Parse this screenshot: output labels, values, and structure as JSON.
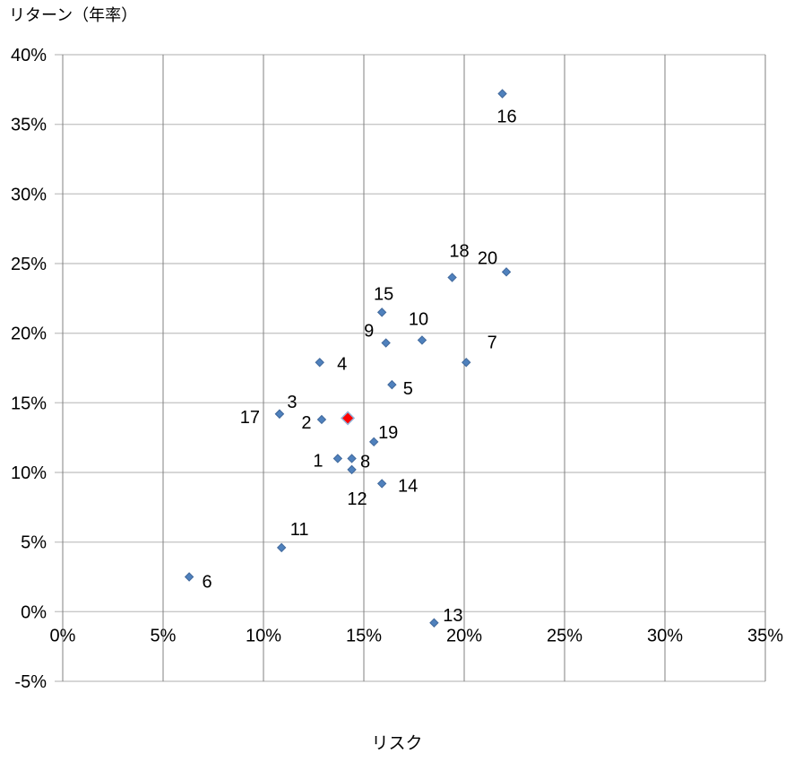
{
  "page": {
    "background": "#ffffff"
  },
  "chart_data": {
    "type": "scatter",
    "title": "",
    "xlabel": "リスク",
    "ylabel": "リターン（年率）",
    "xlim": [
      0,
      35
    ],
    "ylim": [
      -5,
      40
    ],
    "x_ticks": [
      0,
      5,
      10,
      15,
      20,
      25,
      30,
      35
    ],
    "y_ticks": [
      40,
      35,
      30,
      25,
      20,
      15,
      10,
      5,
      0,
      -5
    ],
    "tick_suffix": "%",
    "grid": "both",
    "legend": "none",
    "colors": {
      "point_fill": "#4f81bd",
      "point_stroke": "#41699c",
      "highlight_fill": "#fe0000",
      "highlight_stroke": "#95b3d7",
      "gridline_horizontal": "#c8c8c8",
      "gridline_vertical": "#818181",
      "text": "#000000"
    },
    "series": [
      {
        "name": "numbered-points",
        "marker": "diamond",
        "color": "#4f81bd",
        "stroke": "#41699c",
        "size": 9,
        "points": [
          {
            "label": "1",
            "x": 13.7,
            "y": 11.0,
            "label_offset": [
              -22,
              2
            ]
          },
          {
            "label": "2",
            "x": 12.9,
            "y": 13.8,
            "label_offset": [
              -17,
              3
            ]
          },
          {
            "label": "3",
            "x": 10.8,
            "y": 14.2,
            "label_offset": [
              14,
              -14
            ]
          },
          {
            "label": "4",
            "x": 12.8,
            "y": 17.9,
            "label_offset": [
              25,
              1
            ]
          },
          {
            "label": "5",
            "x": 16.4,
            "y": 16.3,
            "label_offset": [
              18,
              4
            ]
          },
          {
            "label": "6",
            "x": 6.3,
            "y": 2.5,
            "label_offset": [
              20,
              5
            ]
          },
          {
            "label": "7",
            "x": 20.1,
            "y": 17.9,
            "label_offset": [
              29,
              -23
            ]
          },
          {
            "label": "8",
            "x": 14.4,
            "y": 11.0,
            "label_offset": [
              15,
              3
            ]
          },
          {
            "label": "9",
            "x": 16.1,
            "y": 19.3,
            "label_offset": [
              -19,
              -14
            ]
          },
          {
            "label": "10",
            "x": 17.9,
            "y": 19.5,
            "label_offset": [
              -4,
              -24
            ]
          },
          {
            "label": "11",
            "x": 10.9,
            "y": 4.6,
            "label_offset": [
              20,
              -21
            ]
          },
          {
            "label": "12",
            "x": 14.4,
            "y": 10.2,
            "label_offset": [
              6,
              32
            ]
          },
          {
            "label": "13",
            "x": 18.5,
            "y": -0.8,
            "label_offset": [
              21,
              -9
            ]
          },
          {
            "label": "14",
            "x": 15.9,
            "y": 9.2,
            "label_offset": [
              29,
              2
            ]
          },
          {
            "label": "15",
            "x": 15.9,
            "y": 21.5,
            "label_offset": [
              2,
              -21
            ]
          },
          {
            "label": "16",
            "x": 21.9,
            "y": 37.2,
            "label_offset": [
              5,
              25
            ]
          },
          {
            "label": "17",
            "x": 10.8,
            "y": 14.2,
            "label_offset": [
              -33,
              3
            ]
          },
          {
            "label": "18",
            "x": 19.4,
            "y": 24.0,
            "label_offset": [
              8,
              -30
            ]
          },
          {
            "label": "19",
            "x": 15.5,
            "y": 12.2,
            "label_offset": [
              16,
              -11
            ]
          },
          {
            "label": "20",
            "x": 22.1,
            "y": 24.4,
            "label_offset": [
              -21,
              -16
            ]
          }
        ]
      },
      {
        "name": "highlight-point",
        "marker": "diamond",
        "color": "#fe0000",
        "stroke": "#95b3d7",
        "size": 14,
        "points": [
          {
            "label": "",
            "x": 14.2,
            "y": 13.9,
            "label_offset": [
              0,
              0
            ]
          }
        ]
      }
    ]
  }
}
